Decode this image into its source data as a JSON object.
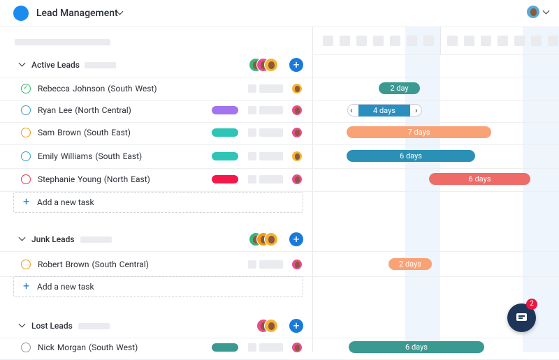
{
  "header": {
    "title": "Lead Management"
  },
  "groups": [
    {
      "name": "Active Leads",
      "add": "Add a new task",
      "tasks": [
        {
          "label": "Rebecca Johnson (South West)",
          "bar": "2 day"
        },
        {
          "label": "Ryan Lee (North Central)",
          "bar": "4 days"
        },
        {
          "label": "Sam Brown (South East)",
          "bar": "7 days"
        },
        {
          "label": "Emily Williams (South East)",
          "bar": "6 days"
        },
        {
          "label": "Stephanie Young (North East)",
          "bar": "6 days"
        }
      ]
    },
    {
      "name": "Junk Leads",
      "add": "Add a new task",
      "tasks": [
        {
          "label": "Robert Brown (South Central)",
          "bar": "2 days"
        }
      ]
    },
    {
      "name": "Lost Leads",
      "tasks": [
        {
          "label": "Nick Morgan (South West)",
          "bar": "6 days"
        }
      ]
    }
  ],
  "chat": {
    "badge": "2"
  }
}
